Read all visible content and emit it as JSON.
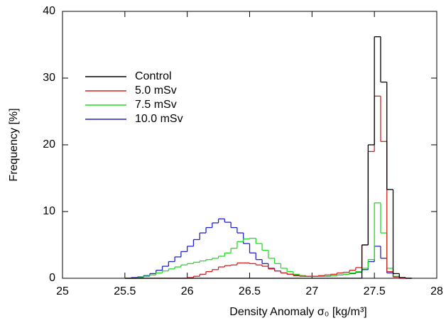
{
  "chart_data": {
    "type": "histogram",
    "xlabel": "Density Anomaly σ₀ [kg/m³]",
    "ylabel": "Frequency [%]",
    "xlim": [
      25,
      28
    ],
    "xticks": [
      25,
      25.5,
      26,
      26.5,
      27,
      27.5,
      28
    ],
    "ylim": [
      0,
      40
    ],
    "yticks": [
      0,
      10,
      20,
      30,
      40
    ],
    "legend": "upper-left",
    "bins": [
      25.5,
      25.55,
      25.6,
      25.65,
      25.7,
      25.75,
      25.8,
      25.85,
      25.9,
      25.95,
      26,
      26.05,
      26.1,
      26.15,
      26.2,
      26.25,
      26.3,
      26.35,
      26.4,
      26.45,
      26.5,
      26.55,
      26.6,
      26.65,
      26.7,
      26.75,
      26.8,
      26.85,
      26.9,
      26.95,
      27,
      27.05,
      27.1,
      27.15,
      27.2,
      27.25,
      27.3,
      27.35,
      27.4,
      27.45,
      27.5,
      27.55,
      27.6,
      27.65,
      27.7,
      27.75,
      27.8
    ],
    "series": [
      {
        "name": "Control",
        "color": "#000000",
        "values": [
          0,
          0,
          0,
          0,
          0,
          0,
          0,
          0,
          0,
          0,
          0,
          0,
          0,
          0,
          0,
          0,
          0,
          0,
          0,
          0,
          0,
          0,
          0,
          0,
          0,
          0,
          0,
          0,
          0,
          0,
          0,
          0,
          0,
          0,
          0,
          0,
          0,
          0,
          5,
          20,
          36.2,
          29.4,
          13.3,
          0.7,
          0.1,
          0
        ]
      },
      {
        "name": "5.0 mSv",
        "color": "#d62020",
        "values": [
          0,
          0,
          0,
          0,
          0,
          0,
          0,
          0,
          0,
          0,
          0.1,
          0.3,
          0.6,
          1,
          1.3,
          1.7,
          1.9,
          2,
          2.3,
          2.3,
          2.2,
          2,
          1.8,
          1.4,
          1.1,
          0.8,
          0.6,
          0.4,
          0.3,
          0.3,
          0.3,
          0.4,
          0.5,
          0.6,
          0.8,
          0.9,
          1.2,
          1.6,
          5,
          19,
          27.3,
          20.5,
          1,
          0.2,
          0,
          0
        ]
      },
      {
        "name": "7.5 mSv",
        "color": "#22dd22",
        "values": [
          0,
          0,
          0.1,
          0.3,
          0.5,
          0.8,
          1.1,
          1.4,
          1.7,
          2,
          2.2,
          2.4,
          2.6,
          2.8,
          3,
          3.3,
          3.8,
          4.5,
          5.5,
          5.9,
          6,
          5.2,
          4.2,
          3,
          2.2,
          1.5,
          1,
          0.6,
          0.4,
          0.3,
          0.3,
          0.3,
          0.3,
          0.4,
          0.5,
          0.6,
          0.8,
          1,
          1.5,
          2.8,
          11.3,
          6.8,
          1.5,
          0.3,
          0.1,
          0
        ]
      },
      {
        "name": "10.0 mSv",
        "color": "#2222cc",
        "values": [
          0,
          0.1,
          0.2,
          0.4,
          0.7,
          1.2,
          1.8,
          2.5,
          3.2,
          4,
          4.8,
          5.8,
          6.8,
          7.6,
          8.3,
          8.9,
          8.4,
          7.6,
          6.8,
          5.2,
          3.8,
          2.8,
          2.2,
          1.5,
          1.1,
          0.8,
          0.6,
          0.5,
          0.4,
          0.3,
          0.3,
          0.3,
          0.3,
          0.4,
          0.5,
          0.6,
          0.7,
          0.9,
          1.3,
          2.5,
          4.8,
          3,
          0.8,
          0.2,
          0,
          0
        ]
      }
    ]
  }
}
